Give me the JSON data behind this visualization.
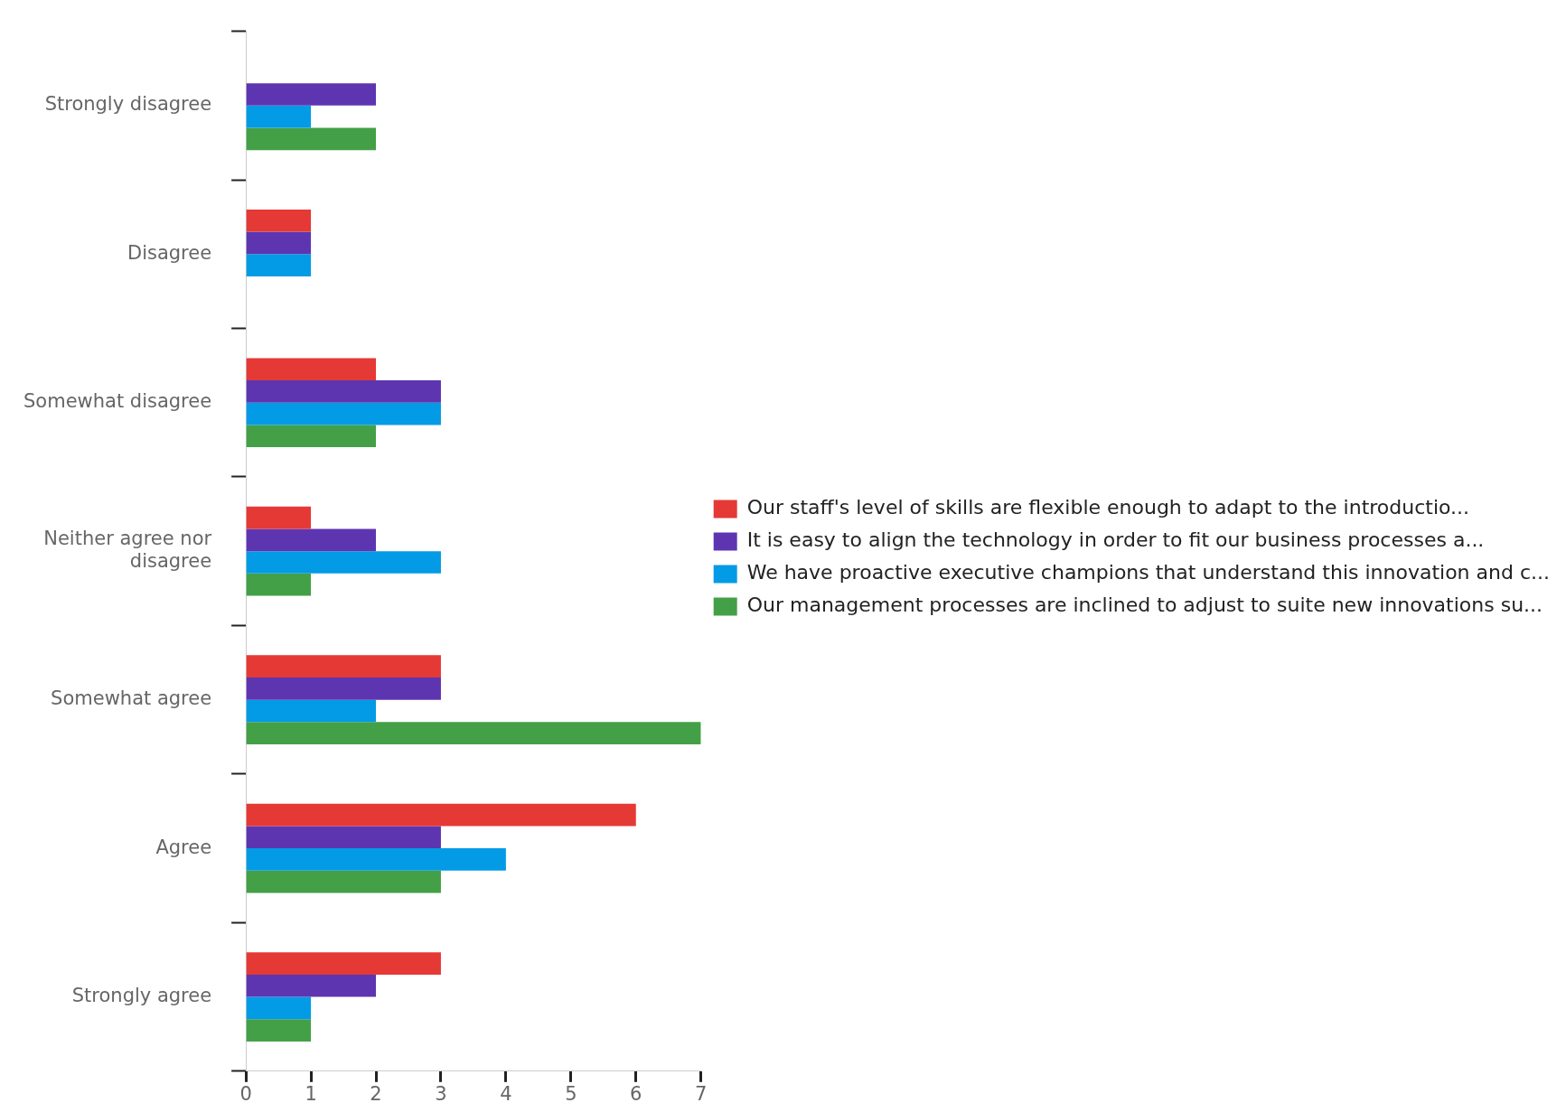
{
  "chart_data": {
    "type": "bar",
    "orientation": "horizontal",
    "categories": [
      "Strongly disagree",
      "Disagree",
      "Somewhat disagree",
      "Neither agree nor disagree",
      "Somewhat agree",
      "Agree",
      "Strongly agree"
    ],
    "series": [
      {
        "name": "Our staff's level of skills are flexible enough to adapt to the introductio...",
        "color": "#e53935",
        "values": [
          0,
          1,
          2,
          1,
          3,
          6,
          3
        ]
      },
      {
        "name": "It is easy to align the technology in order to fit our business processes a...",
        "color": "#5e35b1",
        "values": [
          2,
          1,
          3,
          2,
          3,
          3,
          2
        ]
      },
      {
        "name": "We have proactive executive champions that understand this innovation and c...",
        "color": "#039be5",
        "values": [
          1,
          1,
          3,
          3,
          2,
          4,
          1
        ]
      },
      {
        "name": "Our management processes are inclined to adjust to suite new innovations su...",
        "color": "#43a047",
        "values": [
          2,
          0,
          2,
          1,
          7,
          3,
          1
        ]
      }
    ],
    "xlim": [
      0,
      7
    ],
    "xticks": [
      0,
      1,
      2,
      3,
      4,
      5,
      6,
      7
    ],
    "grid": false,
    "legend": "right"
  }
}
